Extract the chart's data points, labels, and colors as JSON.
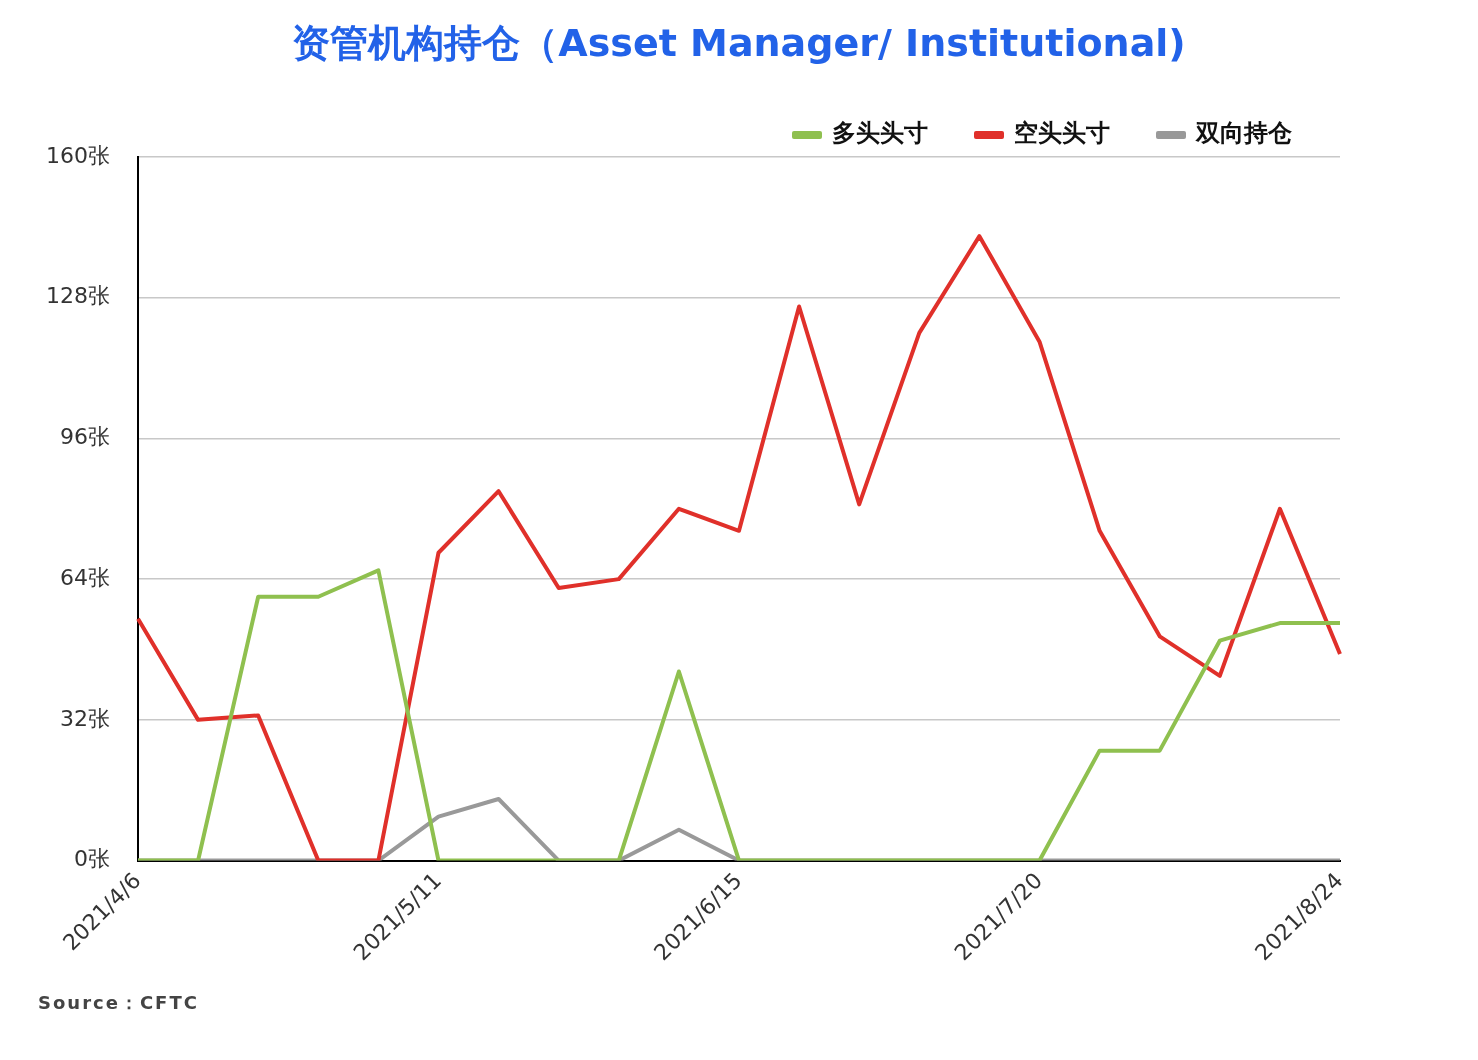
{
  "chart_data": {
    "type": "line",
    "title": "资管机构持仓（Asset Manager/ Institutional)",
    "categories": [
      "2021/4/6",
      null,
      null,
      null,
      null,
      "2021/5/11",
      null,
      null,
      null,
      null,
      "2021/6/15",
      null,
      null,
      null,
      null,
      "2021/7/20",
      null,
      null,
      null,
      null,
      "2021/8/24"
    ],
    "series": [
      {
        "name": "多头头寸",
        "color": "#8fc04f",
        "values": [
          0,
          0,
          60,
          60,
          66,
          0,
          0,
          0,
          0,
          43,
          0,
          0,
          0,
          0,
          0,
          0,
          25,
          25,
          50,
          54,
          54
        ]
      },
      {
        "name": "空头头寸",
        "color": "#e0302a",
        "values": [
          55,
          32,
          33,
          0,
          0,
          70,
          84,
          62,
          64,
          80,
          75,
          126,
          81,
          120,
          142,
          118,
          75,
          51,
          42,
          80,
          47
        ]
      },
      {
        "name": "双向持仓",
        "color": "#999999",
        "values": [
          0,
          0,
          0,
          0,
          0,
          10,
          14,
          0,
          0,
          7,
          0,
          0,
          0,
          0,
          0,
          0,
          0,
          0,
          0,
          0,
          0
        ]
      }
    ],
    "ylim": [
      0,
      160
    ],
    "yticks": [
      {
        "value": 0,
        "label": "0张"
      },
      {
        "value": 32,
        "label": "32张"
      },
      {
        "value": 64,
        "label": "64张"
      },
      {
        "value": 96,
        "label": "96张"
      },
      {
        "value": 128,
        "label": "128张"
      },
      {
        "value": 160,
        "label": "160张"
      }
    ],
    "grid": "y",
    "legend": "top right",
    "marker": "none",
    "line_style": "solid",
    "annotations": [
      "Source：CFTC"
    ]
  }
}
